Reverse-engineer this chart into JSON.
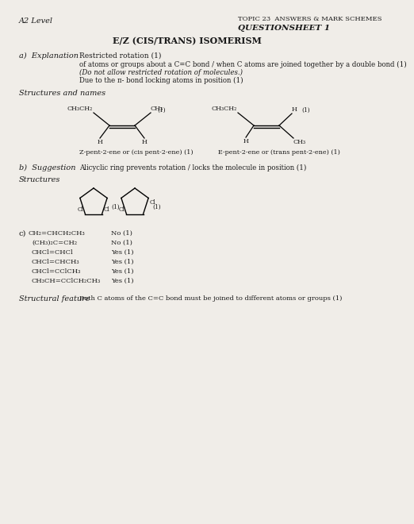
{
  "bg_color": "#f0ede8",
  "title_topic": "TOPIC 23  ANSWERS & MARK SCHEMES",
  "title_sheet": "QUESTIONSHEET 1",
  "title_subject": "E/Z (CIS/TRANS) ISOMERISM",
  "header_left": "A2 Level",
  "section_a_label": "a)  Explanation",
  "section_a_text1": "Restricted rotation (1)",
  "section_a_text2": "of atoms or groups about a C=C bond / when C atoms are joined together by a double bond (1)",
  "section_a_text3": "(Do not allow restricted rotation of molecules.)",
  "section_a_text4": "Due to the π- bond locking atoms in position (1)",
  "section_struct_label": "Structures and names",
  "z_label": "Z-pent-2-ene or (cis pent-2-ene) (1)",
  "e_label": "E-pent-2-ene or (trans pent-2-ene) (1)",
  "section_b_label": "b)  Suggestion",
  "section_b_text": "Alicyclic ring prevents rotation / locks the molecule in position (1)",
  "section_b_struct": "Structures",
  "section_c_label": "c)",
  "section_c_items": [
    [
      "CH₂=CHCH₂CH₃",
      "No (1)"
    ],
    [
      "(CH₃)₂C=CH₂",
      "No (1)"
    ],
    [
      "CHCl=CHCl",
      "Yes (1)"
    ],
    [
      "CHCl=CHCH₃",
      "Yes (1)"
    ],
    [
      "CHCl=CClCH₃",
      "Yes (1)"
    ],
    [
      "CH₃CH=CClCH₂CH₃",
      "Yes (1)"
    ]
  ],
  "section_c_feat_label": "Structural feature",
  "section_c_feat_text": "Both C atoms of the C=C bond must be joined to different atoms or groups (1)"
}
